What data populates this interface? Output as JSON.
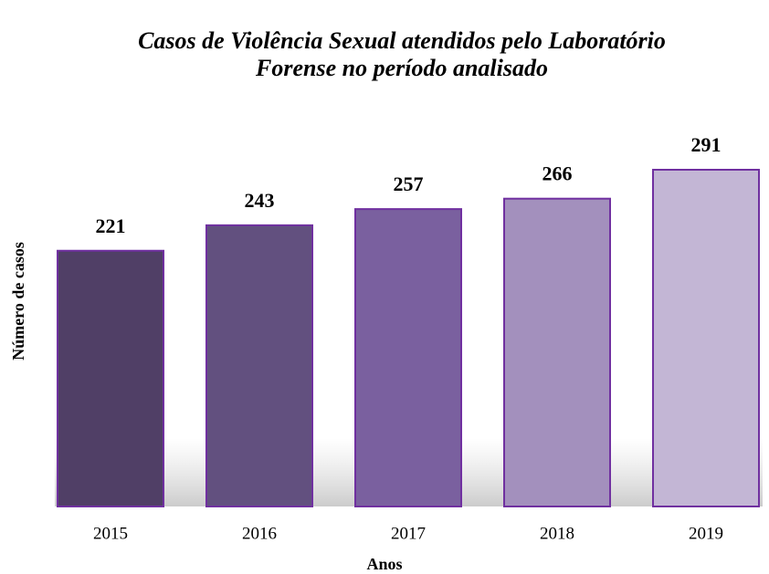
{
  "chart_data": {
    "type": "bar",
    "title": "Casos de Violência Sexual atendidos pelo Laboratório Forense no período analisado",
    "x_label": "Anos",
    "y_label": "Número de casos",
    "categories": [
      "2015",
      "2016",
      "2017",
      "2018",
      "2019"
    ],
    "values": [
      221,
      243,
      257,
      266,
      291
    ],
    "colors": [
      "#503f66",
      "#62507f",
      "#7a609f",
      "#a390bd",
      "#c3b6d5"
    ],
    "edge_color": "#7030a0"
  }
}
